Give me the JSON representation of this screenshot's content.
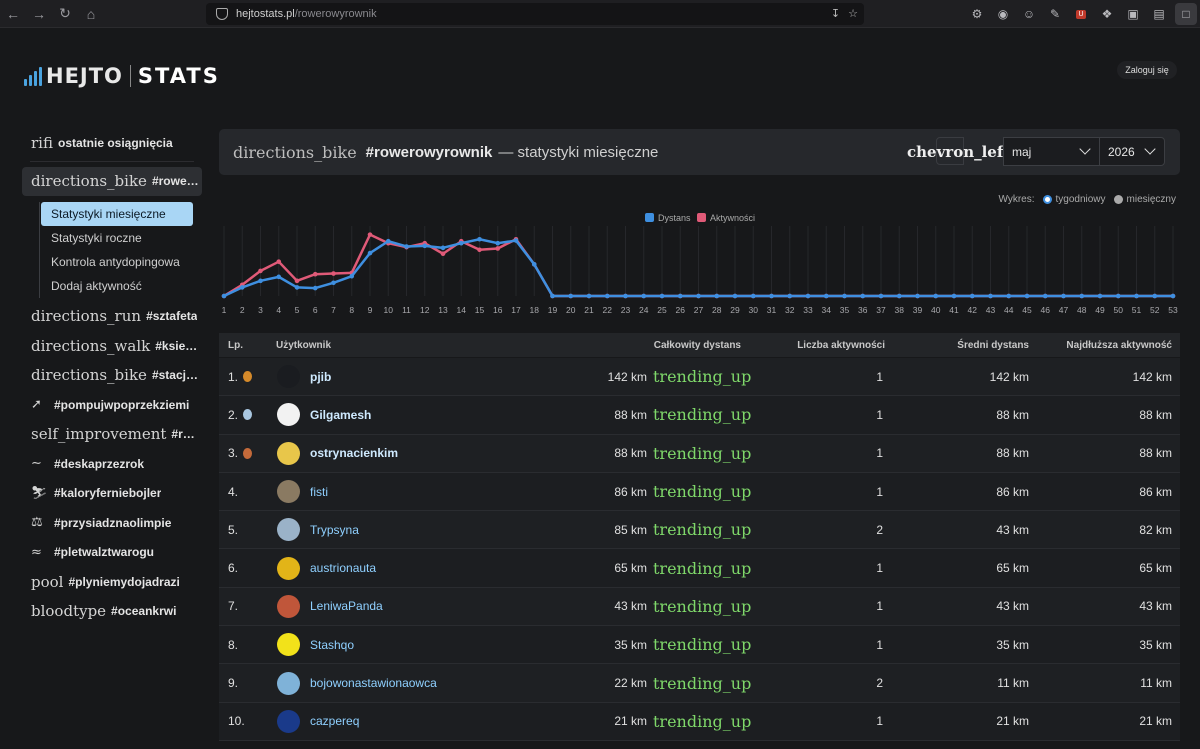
{
  "browser": {
    "url_domain": "hejtostats.pl",
    "url_path": "/rowerowyrownik"
  },
  "header": {
    "logo_left": "HEJTO",
    "logo_right": "STATS",
    "login_label": "Zaloguj się"
  },
  "sidebar": {
    "top_item": {
      "icon": "rifi",
      "label": "ostatnie osiągnięcia"
    },
    "items": [
      {
        "icon": "directions_bike",
        "label": "#rowerowyrownik",
        "active": true
      },
      {
        "icon": "directions_run",
        "label": "#sztafeta"
      },
      {
        "icon": "directions_walk",
        "label": "#ksiezycowyspacer"
      },
      {
        "icon": "directions_bike",
        "label": "#stacjonarnyrower"
      },
      {
        "icon": "rowing-icon",
        "label": "#pompujwpoprzekziemi"
      },
      {
        "icon": "self_improvement",
        "label": "#rozciaganie"
      },
      {
        "icon": "skate-icon",
        "label": "#deskaprzezrok"
      },
      {
        "icon": "ski-icon",
        "label": "#kaloryferniebojler"
      },
      {
        "icon": "squat-icon",
        "label": "#przysiadznaolimpie"
      },
      {
        "icon": "swim-icon",
        "label": "#pletwalztwarogu"
      },
      {
        "icon": "pool",
        "label": "#plyniemydojadrazi"
      },
      {
        "icon": "bloodtype",
        "label": "#oceankrwi"
      }
    ],
    "subitems": [
      {
        "label": "Statystyki miesięczne",
        "active": true
      },
      {
        "label": "Statystyki roczne"
      },
      {
        "label": "Kontrola antydopingowa"
      },
      {
        "label": "Dodaj aktywność"
      }
    ]
  },
  "main": {
    "icon": "directions_bike",
    "tag": "#rowerowyrownik",
    "subtitle": "— statystyki miesięczne",
    "chevron_text": "chevron_left",
    "month": "maj",
    "year": "2026",
    "wykres_label": "Wykres:",
    "option_weekly": "tygodniowy",
    "option_monthly": "miesięczny"
  },
  "chart_data": {
    "type": "line",
    "legend": [
      "Dystans",
      "Aktywności"
    ],
    "colors": {
      "Dystans": "#3e8fe0",
      "Aktywności": "#e05a78"
    },
    "x": [
      1,
      2,
      3,
      4,
      5,
      6,
      7,
      8,
      9,
      10,
      11,
      12,
      13,
      14,
      15,
      16,
      17,
      18,
      19,
      20,
      21,
      22,
      23,
      24,
      25,
      26,
      27,
      28,
      29,
      30,
      31,
      32,
      33,
      34,
      35,
      36,
      37,
      38,
      39,
      40,
      41,
      42,
      43,
      44,
      45,
      46,
      47,
      48,
      49,
      50,
      51,
      52,
      53
    ],
    "series": [
      {
        "name": "Dystans",
        "values": [
          0,
          0.13,
          0.23,
          0.29,
          0.13,
          0.12,
          0.2,
          0.3,
          0.65,
          0.83,
          0.75,
          0.76,
          0.73,
          0.8,
          0.86,
          0.8,
          0.84,
          0.48,
          0,
          0,
          0,
          0,
          0,
          0,
          0,
          0,
          0,
          0,
          0,
          0,
          0,
          0,
          0,
          0,
          0,
          0,
          0,
          0,
          0,
          0,
          0,
          0,
          0,
          0,
          0,
          0,
          0,
          0,
          0,
          0,
          0,
          0,
          0
        ]
      },
      {
        "name": "Aktywności",
        "values": [
          0,
          0.17,
          0.38,
          0.52,
          0.23,
          0.33,
          0.34,
          0.35,
          0.93,
          0.8,
          0.74,
          0.8,
          0.64,
          0.83,
          0.7,
          0.72,
          0.86,
          0.48,
          0,
          0,
          0,
          0,
          0,
          0,
          0,
          0,
          0,
          0,
          0,
          0,
          0,
          0,
          0,
          0,
          0,
          0,
          0,
          0,
          0,
          0,
          0,
          0,
          0,
          0,
          0,
          0,
          0,
          0,
          0,
          0,
          0,
          0,
          0
        ]
      }
    ],
    "grid": true,
    "legend_position": "top"
  },
  "table": {
    "headers": {
      "lp": "Lp.",
      "user": "Użytkownik",
      "total": "Całkowity dystans",
      "count": "Liczba aktywności",
      "avg": "Średni dystans",
      "max": "Najdłuższa aktywność"
    },
    "trend_icon": "trending_up",
    "rows": [
      {
        "lp": "1.",
        "medal": "gold",
        "user": "pjib",
        "bold": true,
        "avatar_color": "#1a1c20",
        "total": "142 km",
        "count": "1",
        "avg": "142 km",
        "max": "142 km"
      },
      {
        "lp": "2.",
        "medal": "silver",
        "user": "Gilgamesh",
        "bold": true,
        "avatar_color": "#f2f2f2",
        "total": "88 km",
        "count": "1",
        "avg": "88 km",
        "max": "88 km"
      },
      {
        "lp": "3.",
        "medal": "bronze",
        "user": "ostrynacienkim",
        "bold": true,
        "avatar_color": "#e8c64a",
        "total": "88 km",
        "count": "1",
        "avg": "88 km",
        "max": "88 km"
      },
      {
        "lp": "4.",
        "medal": "",
        "user": "fisti",
        "bold": false,
        "avatar_color": "#8a7a62",
        "total": "86 km",
        "count": "1",
        "avg": "86 km",
        "max": "86 km"
      },
      {
        "lp": "5.",
        "medal": "",
        "user": "Trypsyna",
        "bold": false,
        "avatar_color": "#9ab2c8",
        "total": "85 km",
        "count": "2",
        "avg": "43 km",
        "max": "82 km"
      },
      {
        "lp": "6.",
        "medal": "",
        "user": "austrionauta",
        "bold": false,
        "avatar_color": "#e2b418",
        "total": "65 km",
        "count": "1",
        "avg": "65 km",
        "max": "65 km"
      },
      {
        "lp": "7.",
        "medal": "",
        "user": "LeniwaPanda",
        "bold": false,
        "avatar_color": "#c0563a",
        "total": "43 km",
        "count": "1",
        "avg": "43 km",
        "max": "43 km"
      },
      {
        "lp": "8.",
        "medal": "",
        "user": "Stashqo",
        "bold": false,
        "avatar_color": "#f2e21a",
        "total": "35 km",
        "count": "1",
        "avg": "35 km",
        "max": "35 km"
      },
      {
        "lp": "9.",
        "medal": "",
        "user": "bojowonastawionaowca",
        "bold": false,
        "avatar_color": "#7fb2d8",
        "total": "22 km",
        "count": "2",
        "avg": "11 km",
        "max": "11 km"
      },
      {
        "lp": "10.",
        "medal": "",
        "user": "cazpereq",
        "bold": false,
        "avatar_color": "#1a3a8a",
        "total": "21 km",
        "count": "1",
        "avg": "21 km",
        "max": "21 km"
      }
    ]
  }
}
